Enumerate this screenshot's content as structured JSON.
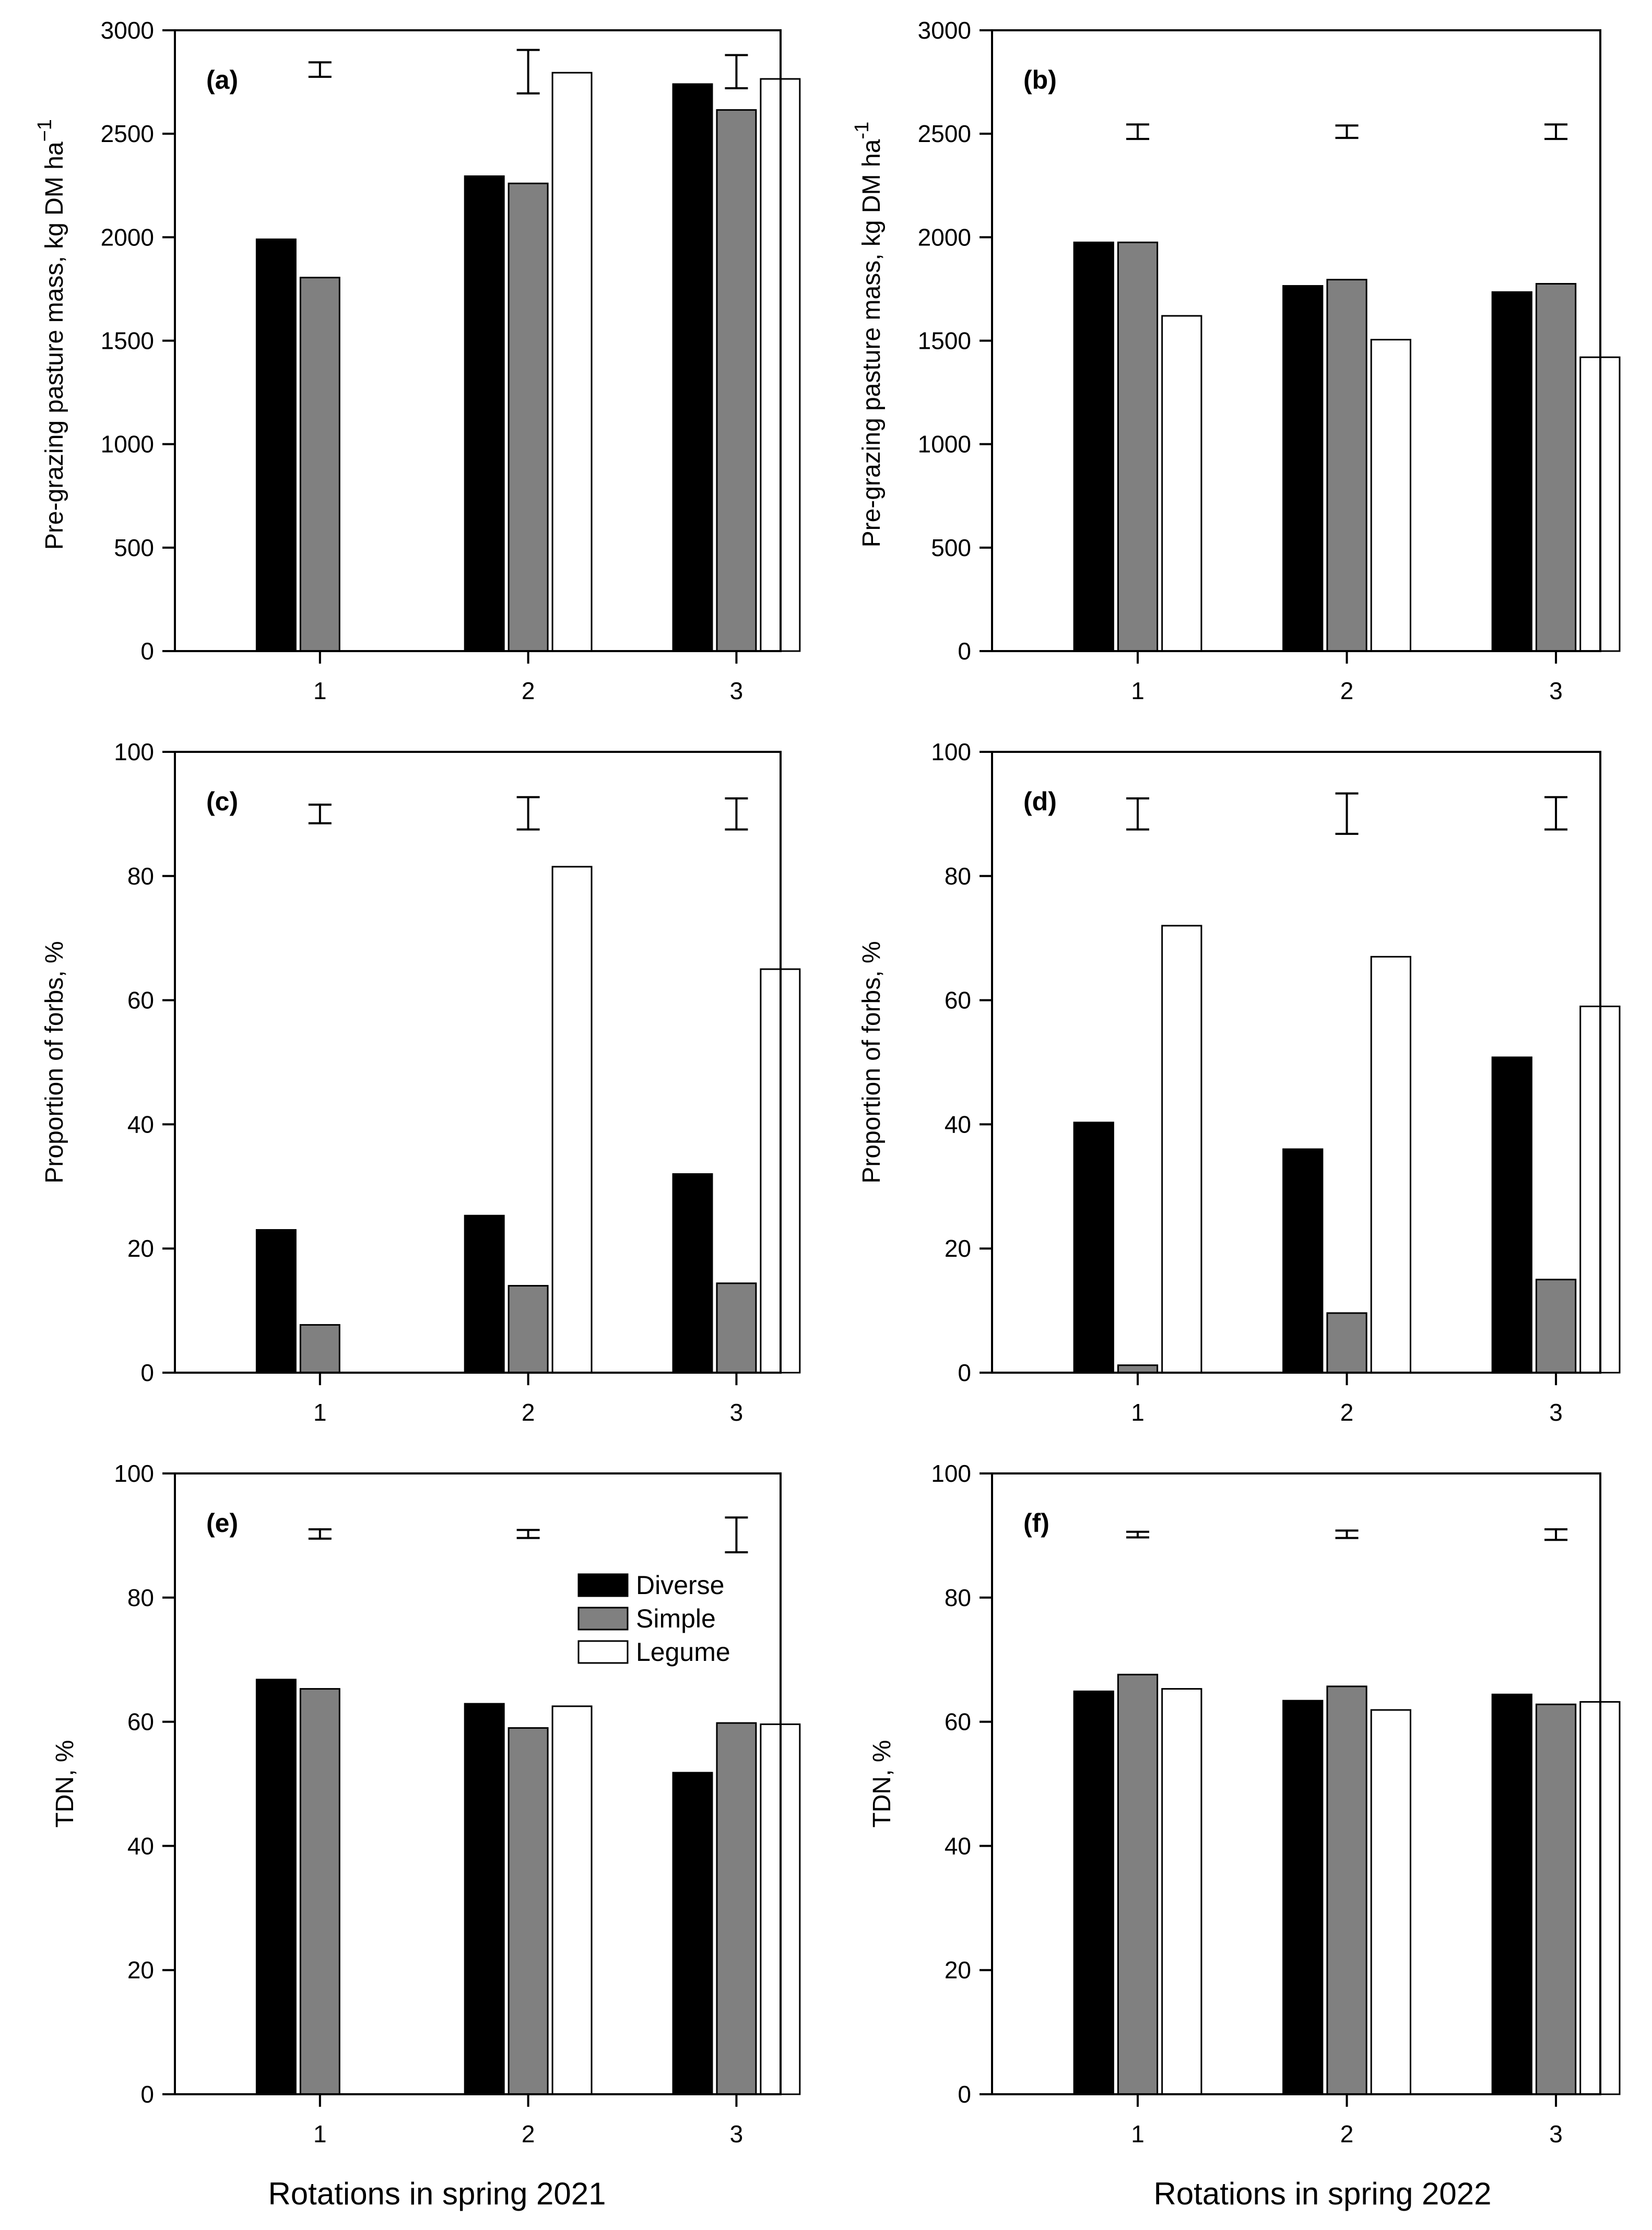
{
  "figure": {
    "xlabel_left": "Rotations in spring 2021",
    "xlabel_right": "Rotations in spring 2022"
  },
  "legend": {
    "items": [
      {
        "label": "Diverse",
        "color": "#000000"
      },
      {
        "label": "Simple",
        "color": "#808080"
      },
      {
        "label": "Legume",
        "color": "#ffffff"
      }
    ]
  },
  "chart_data": [
    {
      "panel": "(a)",
      "type": "bar",
      "categories": [
        "1",
        "2",
        "3"
      ],
      "ylabel": "Pre-grazing pasture mass, kg DM ha",
      "ylabel_sup": "−1",
      "ylim": [
        0,
        3000
      ],
      "yticks": [
        0,
        500,
        1000,
        1500,
        2000,
        2500,
        3000
      ],
      "series": [
        {
          "name": "Diverse",
          "values": [
            1990,
            2295,
            2740
          ]
        },
        {
          "name": "Simple",
          "values": [
            1805,
            2260,
            2615
          ]
        },
        {
          "name": "Legume",
          "values": [
            null,
            2795,
            2765
          ]
        }
      ],
      "error_bars": [
        {
          "low": 2775,
          "high": 2845
        },
        {
          "low": 2695,
          "high": 2905
        },
        {
          "low": 2720,
          "high": 2880
        }
      ]
    },
    {
      "panel": "(b)",
      "type": "bar",
      "categories": [
        "1",
        "2",
        "3"
      ],
      "ylabel": "Pre-grazing pasture mass, kg DM ha",
      "ylabel_sup": "-1",
      "ylim": [
        0,
        3000
      ],
      "yticks": [
        0,
        500,
        1000,
        1500,
        2000,
        2500,
        3000
      ],
      "series": [
        {
          "name": "Diverse",
          "values": [
            1975,
            1765,
            1735
          ]
        },
        {
          "name": "Simple",
          "values": [
            1975,
            1795,
            1775
          ]
        },
        {
          "name": "Legume",
          "values": [
            1620,
            1505,
            1420
          ]
        }
      ],
      "error_bars": [
        {
          "low": 2475,
          "high": 2545
        },
        {
          "low": 2480,
          "high": 2540
        },
        {
          "low": 2475,
          "high": 2545
        }
      ]
    },
    {
      "panel": "(c)",
      "type": "bar",
      "categories": [
        "1",
        "2",
        "3"
      ],
      "ylabel": "Proportion of forbs, %",
      "ylim": [
        0,
        100
      ],
      "yticks": [
        0,
        20,
        40,
        60,
        80,
        100
      ],
      "series": [
        {
          "name": "Diverse",
          "values": [
            23,
            25.3,
            32
          ]
        },
        {
          "name": "Simple",
          "values": [
            7.7,
            14,
            14.4
          ]
        },
        {
          "name": "Legume",
          "values": [
            null,
            81.5,
            65
          ]
        }
      ],
      "error_bars": [
        {
          "low": 88.5,
          "high": 91.5
        },
        {
          "low": 87.5,
          "high": 92.7
        },
        {
          "low": 87.5,
          "high": 92.5
        }
      ]
    },
    {
      "panel": "(d)",
      "type": "bar",
      "categories": [
        "1",
        "2",
        "3"
      ],
      "ylabel": "Proportion of forbs, %",
      "ylim": [
        0,
        100
      ],
      "yticks": [
        0,
        20,
        40,
        60,
        80,
        100
      ],
      "series": [
        {
          "name": "Diverse",
          "values": [
            40.3,
            36,
            50.8
          ]
        },
        {
          "name": "Simple",
          "values": [
            1.2,
            9.6,
            15
          ]
        },
        {
          "name": "Legume",
          "values": [
            72,
            67,
            59
          ]
        }
      ],
      "error_bars": [
        {
          "low": 87.5,
          "high": 92.5
        },
        {
          "low": 86.8,
          "high": 93.3
        },
        {
          "low": 87.5,
          "high": 92.7
        }
      ]
    },
    {
      "panel": "(e)",
      "type": "bar",
      "categories": [
        "1",
        "2",
        "3"
      ],
      "ylabel": "TDN, %",
      "ylim": [
        0,
        100
      ],
      "yticks": [
        0,
        20,
        40,
        60,
        80,
        100
      ],
      "series": [
        {
          "name": "Diverse",
          "values": [
            66.8,
            62.9,
            51.8
          ]
        },
        {
          "name": "Simple",
          "values": [
            65.3,
            59,
            59.8
          ]
        },
        {
          "name": "Legume",
          "values": [
            null,
            62.5,
            59.6
          ]
        }
      ],
      "error_bars": [
        {
          "low": 89.5,
          "high": 91
        },
        {
          "low": 89.6,
          "high": 90.9
        },
        {
          "low": 87.3,
          "high": 92.9
        }
      ]
    },
    {
      "panel": "(f)",
      "type": "bar",
      "categories": [
        "1",
        "2",
        "3"
      ],
      "ylabel": "TDN, %",
      "ylim": [
        0,
        100
      ],
      "yticks": [
        0,
        20,
        40,
        60,
        80,
        100
      ],
      "series": [
        {
          "name": "Diverse",
          "values": [
            64.9,
            63.4,
            64.4
          ]
        },
        {
          "name": "Simple",
          "values": [
            67.6,
            65.7,
            62.8
          ]
        },
        {
          "name": "Legume",
          "values": [
            65.3,
            61.9,
            63.2
          ]
        }
      ],
      "error_bars": [
        {
          "low": 89.7,
          "high": 90.6
        },
        {
          "low": 89.6,
          "high": 90.8
        },
        {
          "low": 89.3,
          "high": 91
        }
      ]
    }
  ]
}
